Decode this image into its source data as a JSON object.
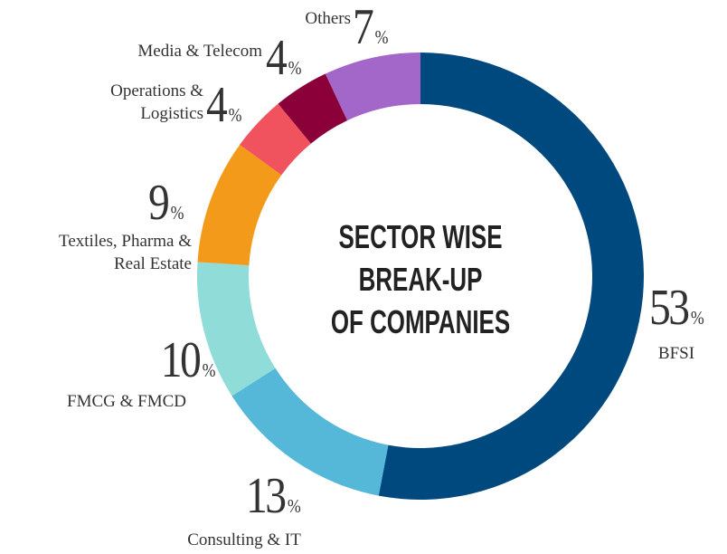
{
  "chart_data": {
    "type": "donut",
    "title": [
      "SECTOR WISE",
      "BREAK-UP",
      "OF COMPANIES"
    ],
    "unit": "%",
    "categories": [
      "BFSI",
      "Consulting & IT",
      "FMCG & FMCD",
      "Textiles, Pharma & Real Estate",
      "Operations & Logistics",
      "Media & Telecom",
      "Others"
    ],
    "values": [
      53,
      13,
      10,
      9,
      4,
      4,
      7
    ],
    "colors": [
      "#00497f",
      "#56b8d9",
      "#8fdcd8",
      "#f39a1b",
      "#f0535d",
      "#8b0039",
      "#a366c9"
    ]
  }
}
